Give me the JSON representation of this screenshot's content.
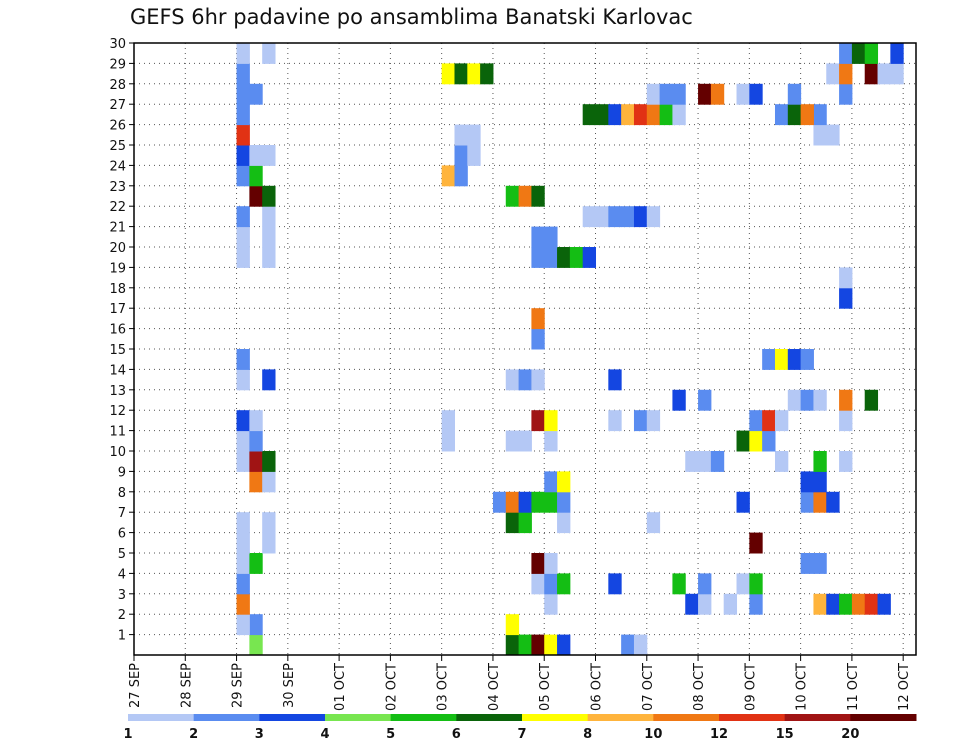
{
  "chart_data": {
    "type": "heatmap",
    "title": "GEFS 6hr padavine po ansamblima Banatski Karlovac",
    "x_tick_labels": [
      "27 SEP",
      "28 SEP",
      "29 SEP",
      "30 SEP",
      "01 OCT",
      "02 OCT",
      "03 OCT",
      "04 OCT",
      "05 OCT",
      "06 OCT",
      "07 OCT",
      "08 OCT",
      "09 OCT",
      "10 OCT",
      "11 OCT",
      "12 OCT"
    ],
    "y_tick_labels": [
      "1",
      "2",
      "3",
      "4",
      "5",
      "6",
      "7",
      "8",
      "9",
      "10",
      "11",
      "12",
      "13",
      "14",
      "15",
      "16",
      "17",
      "18",
      "19",
      "20",
      "21",
      "22",
      "23",
      "24",
      "25",
      "26",
      "27",
      "28",
      "29",
      "30"
    ],
    "x_range_days": [
      0,
      15.25
    ],
    "y_range": [
      0,
      30
    ],
    "grid": true,
    "legend": {
      "placement": "bottom",
      "labels": [
        "1",
        "2",
        "3",
        "4",
        "5",
        "6",
        "7",
        "8",
        "10",
        "12",
        "15",
        "20"
      ],
      "colors": [
        "#b4c8f5",
        "#5a8cf0",
        "#1446e1",
        "#78e650",
        "#14be14",
        "#0a640a",
        "#ffff00",
        "#ffb43c",
        "#f07814",
        "#e13214",
        "#a01414",
        "#640000"
      ]
    },
    "cells": [
      {
        "t": "29 SEP 06",
        "m": 0,
        "v": 4
      },
      {
        "t": "29 SEP 06",
        "m": 1,
        "v": 2
      },
      {
        "t": "29 SEP 00",
        "m": 1,
        "v": 1
      },
      {
        "t": "29 SEP 00",
        "m": 2,
        "v": 10
      },
      {
        "t": "29 SEP 00",
        "m": 3,
        "v": 2
      },
      {
        "t": "29 SEP 00",
        "m": 4,
        "v": 1
      },
      {
        "t": "29 SEP 06",
        "m": 4,
        "v": 5
      },
      {
        "t": "29 SEP 00",
        "m": 5,
        "v": 1
      },
      {
        "t": "29 SEP 12",
        "m": 5,
        "v": 1
      },
      {
        "t": "29 SEP 00",
        "m": 6,
        "v": 1
      },
      {
        "t": "29 SEP 12",
        "m": 6,
        "v": 1
      },
      {
        "t": "29 SEP 06",
        "m": 8,
        "v": 10
      },
      {
        "t": "29 SEP 12",
        "m": 8,
        "v": 1
      },
      {
        "t": "29 SEP 00",
        "m": 9,
        "v": 1
      },
      {
        "t": "29 SEP 06",
        "m": 9,
        "v": 15
      },
      {
        "t": "29 SEP 12",
        "m": 9,
        "v": 6
      },
      {
        "t": "29 SEP 00",
        "m": 10,
        "v": 1
      },
      {
        "t": "29 SEP 06",
        "m": 10,
        "v": 2
      },
      {
        "t": "29 SEP 00",
        "m": 11,
        "v": 3
      },
      {
        "t": "29 SEP 06",
        "m": 11,
        "v": 1
      },
      {
        "t": "29 SEP 00",
        "m": 13,
        "v": 1
      },
      {
        "t": "29 SEP 12",
        "m": 13,
        "v": 3
      },
      {
        "t": "29 SEP 00",
        "m": 14,
        "v": 2
      },
      {
        "t": "29 SEP 00",
        "m": 19,
        "v": 1
      },
      {
        "t": "29 SEP 12",
        "m": 19,
        "v": 1
      },
      {
        "t": "29 SEP 00",
        "m": 20,
        "v": 1
      },
      {
        "t": "29 SEP 12",
        "m": 20,
        "v": 1
      },
      {
        "t": "29 SEP 00",
        "m": 21,
        "v": 2
      },
      {
        "t": "29 SEP 12",
        "m": 21,
        "v": 1
      },
      {
        "t": "29 SEP 06",
        "m": 22,
        "v": 20
      },
      {
        "t": "29 SEP 12",
        "m": 22,
        "v": 6
      },
      {
        "t": "29 SEP 00",
        "m": 23,
        "v": 2
      },
      {
        "t": "29 SEP 06",
        "m": 23,
        "v": 5
      },
      {
        "t": "29 SEP 00",
        "m": 24,
        "v": 3
      },
      {
        "t": "29 SEP 06",
        "m": 24,
        "v": 1
      },
      {
        "t": "29 SEP 12",
        "m": 24,
        "v": 1
      },
      {
        "t": "29 SEP 00",
        "m": 25,
        "v": 12
      },
      {
        "t": "29 SEP 00",
        "m": 26,
        "v": 2
      },
      {
        "t": "29 SEP 00",
        "m": 27,
        "v": 2
      },
      {
        "t": "29 SEP 06",
        "m": 27,
        "v": 2
      },
      {
        "t": "29 SEP 00",
        "m": 28,
        "v": 2
      },
      {
        "t": "29 SEP 00",
        "m": 29,
        "v": 1
      },
      {
        "t": "29 SEP 12",
        "m": 29,
        "v": 1
      },
      {
        "t": "04 OCT 06",
        "m": 0,
        "v": 6
      },
      {
        "t": "04 OCT 12",
        "m": 0,
        "v": 5
      },
      {
        "t": "04 OCT 18",
        "m": 0,
        "v": 20
      },
      {
        "t": "05 OCT 00",
        "m": 0,
        "v": 7
      },
      {
        "t": "05 OCT 06",
        "m": 0,
        "v": 3
      },
      {
        "t": "06 OCT 12",
        "m": 0,
        "v": 2
      },
      {
        "t": "06 OCT 18",
        "m": 0,
        "v": 1
      },
      {
        "t": "04 OCT 06",
        "m": 1,
        "v": 7
      },
      {
        "t": "05 OCT 00",
        "m": 2,
        "v": 1
      },
      {
        "t": "07 OCT 18",
        "m": 2,
        "v": 3
      },
      {
        "t": "08 OCT 00",
        "m": 2,
        "v": 1
      },
      {
        "t": "08 OCT 12",
        "m": 2,
        "v": 1
      },
      {
        "t": "09 OCT 00",
        "m": 2,
        "v": 2
      },
      {
        "t": "10 OCT 06",
        "m": 2,
        "v": 8
      },
      {
        "t": "10 OCT 12",
        "m": 2,
        "v": 3
      },
      {
        "t": "10 OCT 18",
        "m": 2,
        "v": 5
      },
      {
        "t": "11 OCT 00",
        "m": 2,
        "v": 10
      },
      {
        "t": "11 OCT 06",
        "m": 2,
        "v": 12
      },
      {
        "t": "11 OCT 12",
        "m": 2,
        "v": 3
      },
      {
        "t": "04 OCT 18",
        "m": 3,
        "v": 1
      },
      {
        "t": "05 OCT 00",
        "m": 3,
        "v": 2
      },
      {
        "t": "05 OCT 06",
        "m": 3,
        "v": 5
      },
      {
        "t": "06 OCT 06",
        "m": 3,
        "v": 3
      },
      {
        "t": "07 OCT 12",
        "m": 3,
        "v": 5
      },
      {
        "t": "08 OCT 00",
        "m": 3,
        "v": 2
      },
      {
        "t": "08 OCT 18",
        "m": 3,
        "v": 1
      },
      {
        "t": "09 OCT 00",
        "m": 3,
        "v": 5
      },
      {
        "t": "04 OCT 18",
        "m": 4,
        "v": 20
      },
      {
        "t": "05 OCT 00",
        "m": 4,
        "v": 1
      },
      {
        "t": "10 OCT 00",
        "m": 4,
        "v": 2
      },
      {
        "t": "10 OCT 06",
        "m": 4,
        "v": 2
      },
      {
        "t": "09 OCT 00",
        "m": 5,
        "v": 24
      },
      {
        "t": "04 OCT 06",
        "m": 6,
        "v": 6
      },
      {
        "t": "04 OCT 12",
        "m": 6,
        "v": 5
      },
      {
        "t": "05 OCT 06",
        "m": 6,
        "v": 1
      },
      {
        "t": "07 OCT 00",
        "m": 6,
        "v": 1
      },
      {
        "t": "04 OCT 00",
        "m": 7,
        "v": 2
      },
      {
        "t": "04 OCT 06",
        "m": 7,
        "v": 10
      },
      {
        "t": "04 OCT 12",
        "m": 7,
        "v": 3
      },
      {
        "t": "04 OCT 18",
        "m": 7,
        "v": 5
      },
      {
        "t": "05 OCT 00",
        "m": 7,
        "v": 5
      },
      {
        "t": "05 OCT 06",
        "m": 7,
        "v": 2
      },
      {
        "t": "08 OCT 18",
        "m": 7,
        "v": 3
      },
      {
        "t": "10 OCT 00",
        "m": 7,
        "v": 2
      },
      {
        "t": "10 OCT 06",
        "m": 7,
        "v": 10
      },
      {
        "t": "10 OCT 12",
        "m": 7,
        "v": 3
      },
      {
        "t": "05 OCT 00",
        "m": 8,
        "v": 2
      },
      {
        "t": "05 OCT 06",
        "m": 8,
        "v": 7
      },
      {
        "t": "10 OCT 00",
        "m": 8,
        "v": 3
      },
      {
        "t": "10 OCT 06",
        "m": 8,
        "v": 3
      },
      {
        "t": "07 OCT 18",
        "m": 9,
        "v": 1
      },
      {
        "t": "08 OCT 00",
        "m": 9,
        "v": 1
      },
      {
        "t": "08 OCT 06",
        "m": 9,
        "v": 2
      },
      {
        "t": "09 OCT 12",
        "m": 9,
        "v": 1
      },
      {
        "t": "10 OCT 06",
        "m": 9,
        "v": 5
      },
      {
        "t": "10 OCT 18",
        "m": 9,
        "v": 1
      },
      {
        "t": "03 OCT 00",
        "m": 10,
        "v": 1
      },
      {
        "t": "04 OCT 06",
        "m": 10,
        "v": 1
      },
      {
        "t": "04 OCT 12",
        "m": 10,
        "v": 1
      },
      {
        "t": "05 OCT 00",
        "m": 10,
        "v": 1
      },
      {
        "t": "08 OCT 18",
        "m": 10,
        "v": 6
      },
      {
        "t": "09 OCT 00",
        "m": 10,
        "v": 7
      },
      {
        "t": "09 OCT 06",
        "m": 10,
        "v": 2
      },
      {
        "t": "03 OCT 00",
        "m": 11,
        "v": 1
      },
      {
        "t": "04 OCT 18",
        "m": 11,
        "v": 15
      },
      {
        "t": "05 OCT 00",
        "m": 11,
        "v": 7
      },
      {
        "t": "06 OCT 06",
        "m": 11,
        "v": 1
      },
      {
        "t": "06 OCT 18",
        "m": 11,
        "v": 2
      },
      {
        "t": "07 OCT 00",
        "m": 11,
        "v": 1
      },
      {
        "t": "09 OCT 00",
        "m": 11,
        "v": 2
      },
      {
        "t": "09 OCT 06",
        "m": 11,
        "v": 12
      },
      {
        "t": "09 OCT 12",
        "m": 11,
        "v": 1
      },
      {
        "t": "10 OCT 18",
        "m": 11,
        "v": 1
      },
      {
        "t": "07 OCT 12",
        "m": 12,
        "v": 3
      },
      {
        "t": "08 OCT 00",
        "m": 12,
        "v": 2
      },
      {
        "t": "09 OCT 18",
        "m": 12,
        "v": 1
      },
      {
        "t": "10 OCT 00",
        "m": 12,
        "v": 2
      },
      {
        "t": "10 OCT 06",
        "m": 12,
        "v": 1
      },
      {
        "t": "10 OCT 18",
        "m": 12,
        "v": 10
      },
      {
        "t": "11 OCT 06",
        "m": 12,
        "v": 6
      },
      {
        "t": "04 OCT 06",
        "m": 13,
        "v": 1
      },
      {
        "t": "04 OCT 12",
        "m": 13,
        "v": 2
      },
      {
        "t": "04 OCT 18",
        "m": 13,
        "v": 1
      },
      {
        "t": "06 OCT 06",
        "m": 13,
        "v": 3
      },
      {
        "t": "09 OCT 06",
        "m": 14,
        "v": 2
      },
      {
        "t": "09 OCT 12",
        "m": 14,
        "v": 7
      },
      {
        "t": "09 OCT 18",
        "m": 14,
        "v": 3
      },
      {
        "t": "10 OCT 00",
        "m": 14,
        "v": 2
      },
      {
        "t": "04 OCT 18",
        "m": 15,
        "v": 2
      },
      {
        "t": "04 OCT 18",
        "m": 16,
        "v": 10
      },
      {
        "t": "10 OCT 18",
        "m": 17,
        "v": 3
      },
      {
        "t": "10 OCT 18",
        "m": 18,
        "v": 1
      },
      {
        "t": "04 OCT 18",
        "m": 19,
        "v": 2
      },
      {
        "t": "05 OCT 00",
        "m": 19,
        "v": 2
      },
      {
        "t": "05 OCT 06",
        "m": 19,
        "v": 6
      },
      {
        "t": "05 OCT 12",
        "m": 19,
        "v": 5
      },
      {
        "t": "05 OCT 18",
        "m": 19,
        "v": 3
      },
      {
        "t": "04 OCT 18",
        "m": 20,
        "v": 2
      },
      {
        "t": "05 OCT 00",
        "m": 20,
        "v": 2
      },
      {
        "t": "05 OCT 18",
        "m": 21,
        "v": 1
      },
      {
        "t": "06 OCT 00",
        "m": 21,
        "v": 1
      },
      {
        "t": "06 OCT 06",
        "m": 21,
        "v": 2
      },
      {
        "t": "06 OCT 12",
        "m": 21,
        "v": 2
      },
      {
        "t": "06 OCT 18",
        "m": 21,
        "v": 3
      },
      {
        "t": "07 OCT 00",
        "m": 21,
        "v": 1
      },
      {
        "t": "04 OCT 06",
        "m": 22,
        "v": 5
      },
      {
        "t": "04 OCT 12",
        "m": 22,
        "v": 10
      },
      {
        "t": "04 OCT 18",
        "m": 22,
        "v": 6
      },
      {
        "t": "03 OCT 00",
        "m": 23,
        "v": 8
      },
      {
        "t": "03 OCT 06",
        "m": 23,
        "v": 2
      },
      {
        "t": "03 OCT 06",
        "m": 24,
        "v": 2
      },
      {
        "t": "03 OCT 12",
        "m": 24,
        "v": 1
      },
      {
        "t": "03 OCT 06",
        "m": 25,
        "v": 1
      },
      {
        "t": "03 OCT 12",
        "m": 25,
        "v": 1
      },
      {
        "t": "05 OCT 18",
        "m": 26,
        "v": 6
      },
      {
        "t": "06 OCT 00",
        "m": 26,
        "v": 6
      },
      {
        "t": "06 OCT 06",
        "m": 26,
        "v": 3
      },
      {
        "t": "06 OCT 12",
        "m": 26,
        "v": 8
      },
      {
        "t": "06 OCT 18",
        "m": 26,
        "v": 12
      },
      {
        "t": "07 OCT 00",
        "m": 26,
        "v": 10
      },
      {
        "t": "07 OCT 06",
        "m": 26,
        "v": 5
      },
      {
        "t": "07 OCT 12",
        "m": 26,
        "v": 1
      },
      {
        "t": "07 OCT 00",
        "m": 27,
        "v": 1
      },
      {
        "t": "07 OCT 06",
        "m": 27,
        "v": 2
      },
      {
        "t": "07 OCT 12",
        "m": 27,
        "v": 2
      },
      {
        "t": "08 OCT 00",
        "m": 27,
        "v": 20
      },
      {
        "t": "08 OCT 06",
        "m": 27,
        "v": 10
      },
      {
        "t": "08 OCT 18",
        "m": 27,
        "v": 1
      },
      {
        "t": "09 OCT 00",
        "m": 27,
        "v": 3
      },
      {
        "t": "03 OCT 00",
        "m": 28,
        "v": 7
      },
      {
        "t": "03 OCT 06",
        "m": 28,
        "v": 6
      },
      {
        "t": "03 OCT 12",
        "m": 28,
        "v": 7
      },
      {
        "t": "03 OCT 18",
        "m": 28,
        "v": 6
      }
    ],
    "extra_cells": [
      {
        "t": "09 OCT 12",
        "m": 26,
        "v": 2
      },
      {
        "t": "09 OCT 18",
        "m": 26,
        "v": 6
      },
      {
        "t": "10 OCT 06",
        "m": 25,
        "v": 1
      },
      {
        "t": "10 OCT 12",
        "m": 25,
        "v": 1
      },
      {
        "t": "10 OCT 06",
        "m": 26,
        "v": 2
      },
      {
        "t": "10 OCT 00",
        "m": 26,
        "v": 10
      },
      {
        "t": "10 OCT 18",
        "m": 27,
        "v": 2
      },
      {
        "t": "10 OCT 12",
        "m": 28,
        "v": 1
      },
      {
        "t": "10 OCT 18",
        "m": 28,
        "v": 10
      },
      {
        "t": "11 OCT 06",
        "m": 28,
        "v": 20
      },
      {
        "t": "11 OCT 12",
        "m": 28,
        "v": 1
      },
      {
        "t": "11 OCT 18",
        "m": 28,
        "v": 1
      },
      {
        "t": "10 OCT 18",
        "m": 29,
        "v": 2
      },
      {
        "t": "11 OCT 00",
        "m": 29,
        "v": 6
      },
      {
        "t": "11 OCT 06",
        "m": 29,
        "v": 5
      },
      {
        "t": "11 OCT 18",
        "m": 29,
        "v": 3
      },
      {
        "t": "09 OCT 18",
        "m": 27,
        "v": 2
      }
    ]
  }
}
